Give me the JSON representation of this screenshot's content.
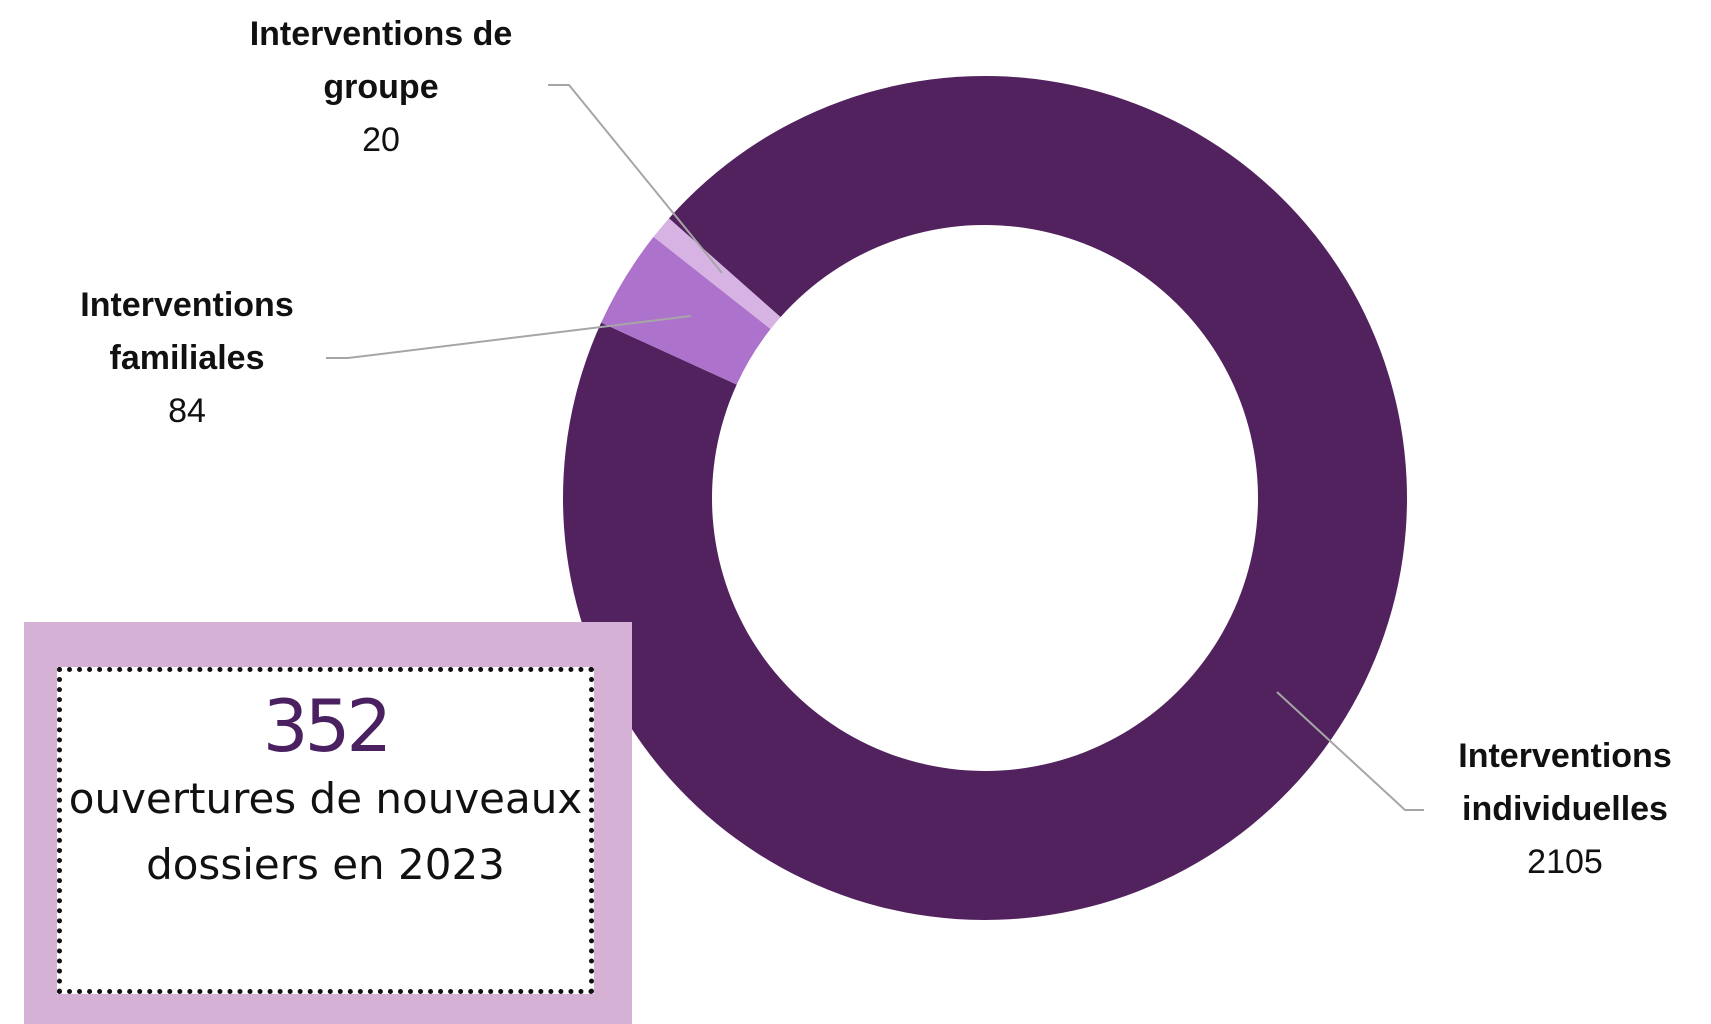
{
  "chart_data": {
    "type": "donut",
    "categories": [
      "Interventions individuelles",
      "Interventions familiales",
      "Interventions de groupe"
    ],
    "values": [
      2105,
      84,
      20
    ],
    "colors": [
      "#52225f",
      "#ad73cc",
      "#d6b3e3"
    ]
  },
  "callout": {
    "number": "352",
    "text": "ouvertures de nouveaux dossiers en 2023"
  }
}
